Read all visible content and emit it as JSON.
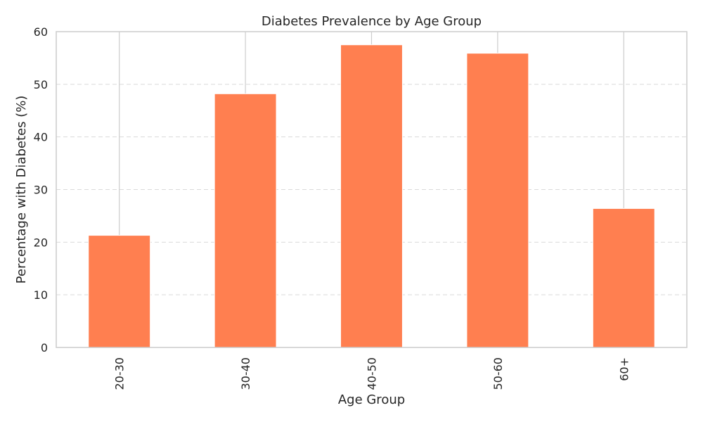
{
  "chart_data": {
    "type": "bar",
    "title": "Diabetes Prevalence by Age Group",
    "xlabel": "Age Group",
    "ylabel": "Percentage with Diabetes (%)",
    "categories": [
      "20-30",
      "30-40",
      "40-50",
      "50-60",
      "60+"
    ],
    "values": [
      21.3,
      48.2,
      57.5,
      55.9,
      26.4
    ],
    "ylim": [
      0,
      60
    ],
    "yticks": [
      0,
      10,
      20,
      30,
      40,
      50,
      60
    ],
    "grid": true,
    "bar_color": "#ff7f50",
    "colors": {
      "grid": "#d9d9d9",
      "frame": "#cccccc",
      "text": "#262626"
    }
  }
}
